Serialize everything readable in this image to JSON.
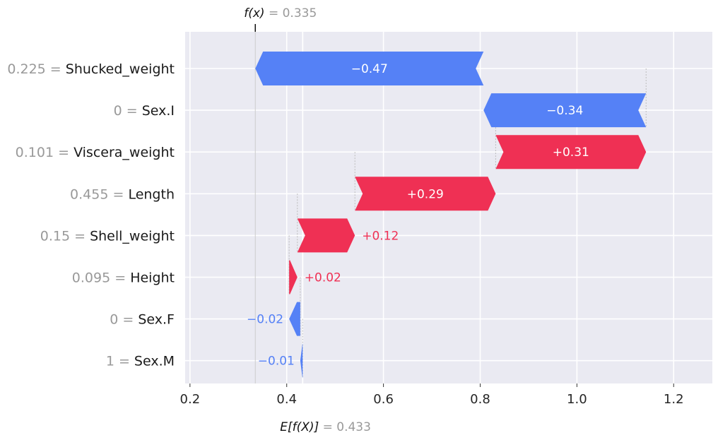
{
  "chart_data": {
    "type": "waterfall",
    "base_value": 0.433,
    "output_value": 0.335,
    "base_label_fn": "E[f(X)]",
    "base_label_value": "= 0.433",
    "output_label_fn": "f(x)",
    "output_label_value": "= 0.335",
    "xlim": [
      0.19,
      1.28
    ],
    "xticks": [
      0.2,
      0.4,
      0.6,
      0.8,
      1.0,
      1.2
    ],
    "xtick_labels": [
      "0.2",
      "0.4",
      "0.6",
      "0.8",
      "1.0",
      "1.2"
    ],
    "features": [
      {
        "name": "Shucked_weight",
        "value": "0.225",
        "shap": -0.47,
        "label": "−0.47",
        "start": 0.807,
        "end": 0.335
      },
      {
        "name": "Sex.I",
        "value": "0",
        "shap": -0.34,
        "label": "−0.34",
        "start": 1.143,
        "end": 0.807
      },
      {
        "name": "Viscera_weight",
        "value": "0.101",
        "shap": 0.31,
        "label": "+0.31",
        "start": 0.832,
        "end": 1.143
      },
      {
        "name": "Length",
        "value": "0.455",
        "shap": 0.29,
        "label": "+0.29",
        "start": 0.541,
        "end": 0.832
      },
      {
        "name": "Shell_weight",
        "value": "0.15",
        "shap": 0.12,
        "label": "+0.12",
        "start": 0.422,
        "end": 0.541
      },
      {
        "name": "Height",
        "value": "0.095",
        "shap": 0.02,
        "label": "+0.02",
        "start": 0.405,
        "end": 0.422
      },
      {
        "name": "Sex.F",
        "value": "0",
        "shap": -0.02,
        "label": "−0.02",
        "start": 0.428,
        "end": 0.405
      },
      {
        "name": "Sex.M",
        "value": "1",
        "shap": -0.01,
        "label": "−0.01",
        "start": 0.433,
        "end": 0.428
      }
    ],
    "colors": {
      "positive": "#ef3054",
      "negative": "#5581f6",
      "background": "#eaeaf2",
      "grid": "#ffffff",
      "muted_text": "#999999"
    },
    "grid": true
  }
}
